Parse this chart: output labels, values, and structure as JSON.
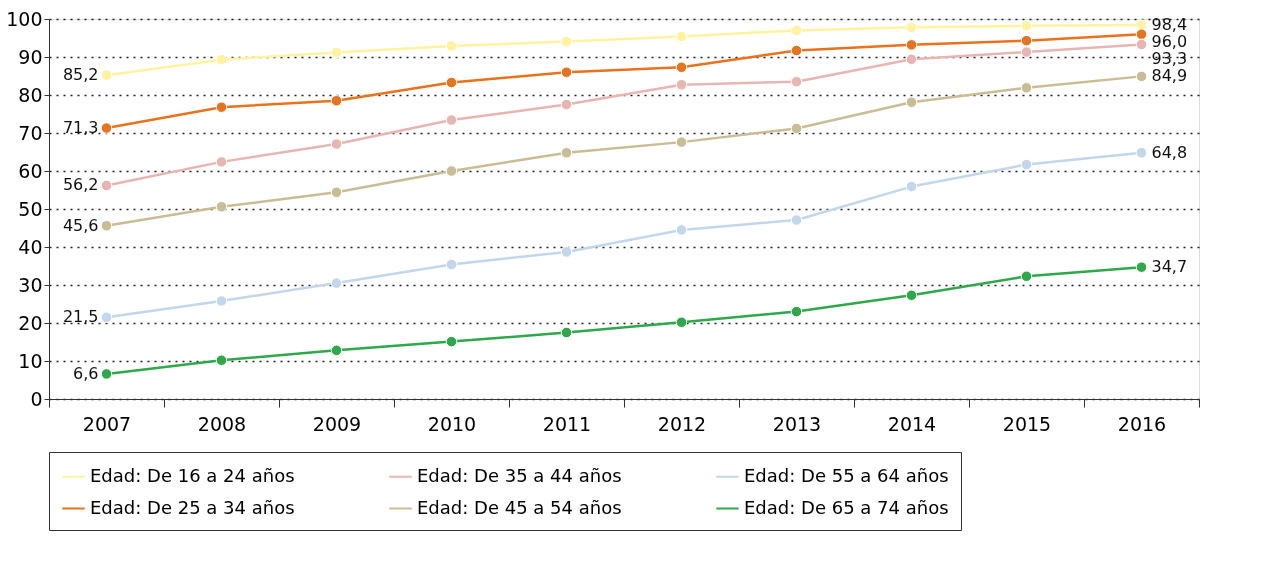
{
  "chart_data": {
    "type": "line",
    "categories": [
      "2007",
      "2008",
      "2009",
      "2010",
      "2011",
      "2012",
      "2013",
      "2014",
      "2015",
      "2016"
    ],
    "ylim": [
      0,
      100
    ],
    "yticks": [
      0,
      10,
      20,
      30,
      40,
      50,
      60,
      70,
      80,
      90,
      100
    ],
    "grid": "y",
    "marker": "circle",
    "line_style": "solid",
    "legend": "bottom",
    "series": [
      {
        "name": "Edad: De 16 a 24 años",
        "color": "#fff3a0",
        "values": [
          85.2,
          89.3,
          91.2,
          92.9,
          94.1,
          95.4,
          97.0,
          97.8,
          98.2,
          98.4
        ],
        "value_labels": [
          "85,2",
          null,
          null,
          null,
          null,
          null,
          null,
          null,
          null,
          "98,4"
        ]
      },
      {
        "name": "Edad: De 25 a 34 años",
        "color": "#e8731c",
        "values": [
          71.3,
          76.8,
          78.5,
          83.3,
          86.0,
          87.3,
          91.7,
          93.2,
          94.3,
          96.0
        ],
        "value_labels": [
          "71,3",
          null,
          null,
          null,
          null,
          null,
          null,
          null,
          null,
          "96,0"
        ]
      },
      {
        "name": "Edad: De 35 a 44 años",
        "color": "#e8b6b2",
        "values": [
          56.2,
          62.4,
          67.1,
          73.4,
          77.5,
          82.7,
          83.5,
          89.4,
          91.3,
          93.3
        ],
        "value_labels": [
          "56,2",
          null,
          null,
          null,
          null,
          null,
          null,
          null,
          null,
          "93,3"
        ]
      },
      {
        "name": "Edad: De 45 a 54 años",
        "color": "#c9bd95",
        "values": [
          45.6,
          50.6,
          54.4,
          60.0,
          64.8,
          67.6,
          71.2,
          78.1,
          81.9,
          84.9
        ],
        "value_labels": [
          "45,6",
          null,
          null,
          null,
          null,
          null,
          null,
          null,
          null,
          "84,9"
        ]
      },
      {
        "name": "Edad: De 55 a 64 años",
        "color": "#c3d7ea",
        "values": [
          21.5,
          25.8,
          30.5,
          35.4,
          38.7,
          44.5,
          47.1,
          55.9,
          61.7,
          64.8
        ],
        "value_labels": [
          "21,5",
          null,
          null,
          null,
          null,
          null,
          null,
          null,
          null,
          "64,8"
        ]
      },
      {
        "name": "Edad: De 65 a 74 años",
        "color": "#2ea84a",
        "values": [
          6.6,
          10.2,
          12.8,
          15.1,
          17.5,
          20.2,
          23.0,
          27.3,
          32.3,
          34.7
        ],
        "value_labels": [
          "6,6",
          null,
          null,
          null,
          null,
          null,
          null,
          null,
          null,
          "34,7"
        ]
      }
    ]
  }
}
